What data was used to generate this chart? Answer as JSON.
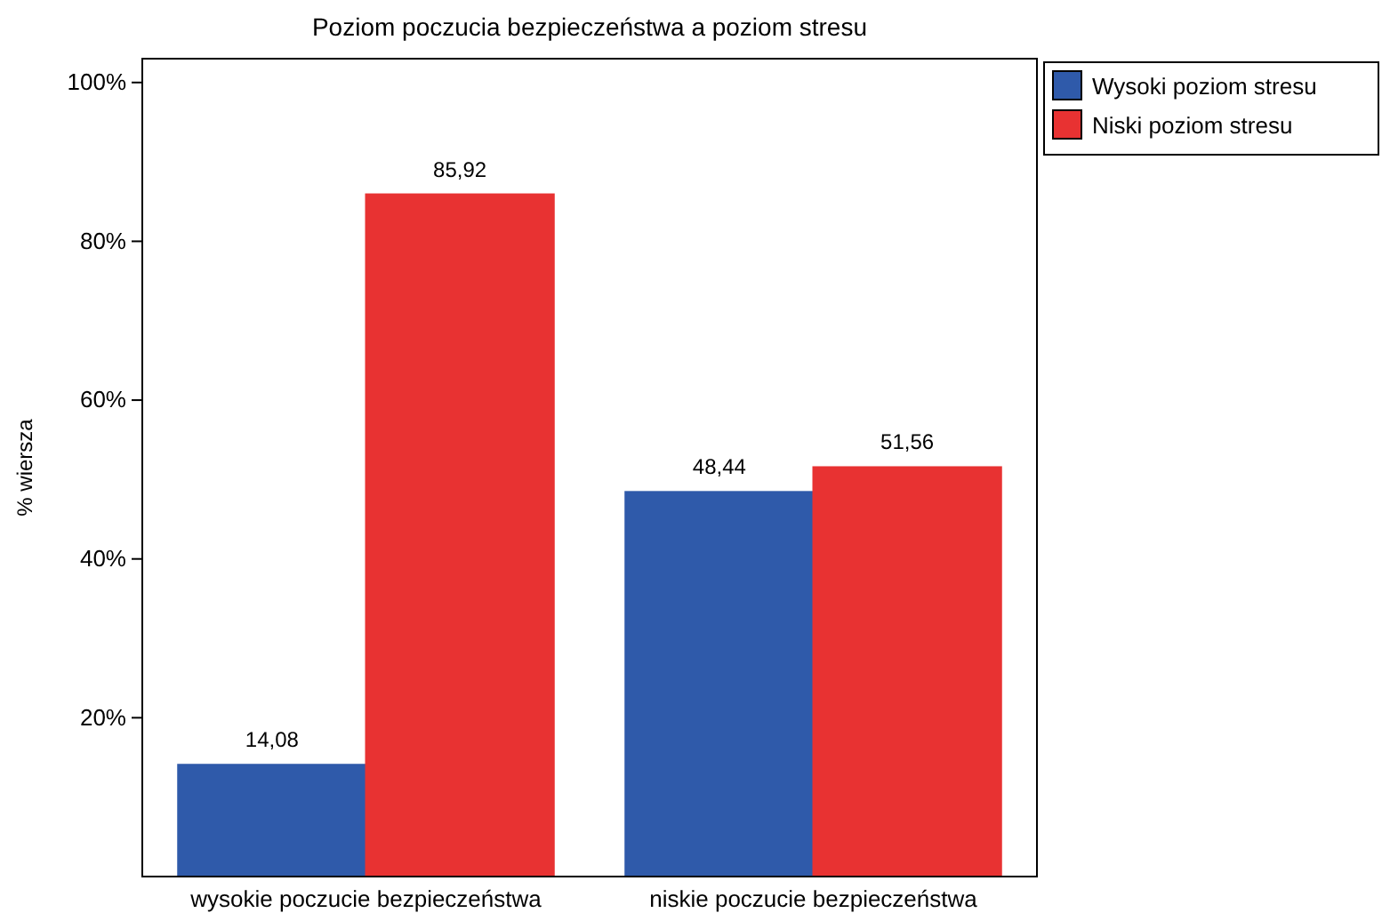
{
  "chart_data": {
    "type": "bar",
    "title": "Poziom poczucia bezpieczeństwa a poziom stresu",
    "ylabel": "% wiersza",
    "categories": [
      "wysokie poczucie bezpieczeństwa",
      "niskie poczucie bezpieczeństwa"
    ],
    "series": [
      {
        "name": "Wysoki poziom stresu",
        "color": "#2f5aaa",
        "values": [
          14.08,
          48.44
        ],
        "value_labels": [
          "14,08",
          "48,44"
        ]
      },
      {
        "name": "Niski poziom stresu",
        "color": "#e83232",
        "values": [
          85.92,
          51.56
        ],
        "value_labels": [
          "85,92",
          "51,56"
        ]
      }
    ],
    "ylim": [
      0,
      103
    ],
    "yticks": [
      {
        "value": 20,
        "label": "20%"
      },
      {
        "value": 40,
        "label": "40%"
      },
      {
        "value": 60,
        "label": "60%"
      },
      {
        "value": 80,
        "label": "80%"
      },
      {
        "value": 100,
        "label": "100%"
      }
    ],
    "grid": false,
    "legend": "top right"
  }
}
